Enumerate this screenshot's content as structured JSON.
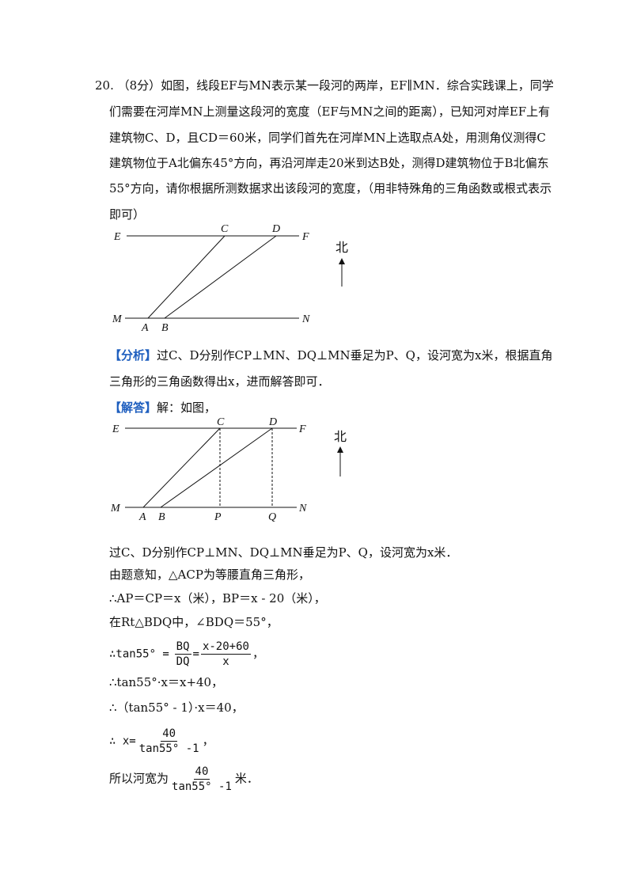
{
  "question": {
    "number": "20.",
    "lines": [
      "（8分）如图，线段EF与MN表示某一段河的两岸，EF∥MN．综合实践课上，同学",
      "们需要在河岸MN上测量这段河的宽度（EF与MN之间的距离），已知河对岸EF上有",
      "建筑物C、D，且CD＝60米，同学们首先在河岸MN上选取点A处，用测角仪测得C",
      "建筑物位于A北偏东45°方向，再沿河岸走20米到达B处，测得D建筑物位于B北偏东",
      "55°方向，请你根据所测数据求出该段河的宽度，（用非特殊角的三角函数或根式表示",
      "即可）"
    ]
  },
  "figure1": {
    "E": "E",
    "F": "F",
    "C": "C",
    "D": "D",
    "M": "M",
    "N": "N",
    "A": "A",
    "B": "B",
    "north": "北"
  },
  "analysis": {
    "tag": "【分析】",
    "text": "过C、D分别作CP⊥MN、DQ⊥MN垂足为P、Q，设河宽为x米，根据直角",
    "text2": "三角形的三角函数得出x，进而解答即可．"
  },
  "answer": {
    "tag": "【解答】",
    "text": "解：如图，"
  },
  "figure2": {
    "E": "E",
    "F": "F",
    "C": "C",
    "D": "D",
    "M": "M",
    "N": "N",
    "A": "A",
    "B": "B",
    "P": "P",
    "Q": "Q",
    "north": "北"
  },
  "solution": {
    "l1": "过C、D分别作CP⊥MN、DQ⊥MN垂足为P、Q，设河宽为x米．",
    "l2": "由题意知，△ACP为等腰直角三角形，",
    "l3": "∴AP＝CP＝x（米），BP＝x - 20（米），",
    "l4": "在Rt△BDQ中，∠BDQ＝55°，",
    "l5_pre": "∴tan55° =",
    "l5_f1_num": "BQ",
    "l5_f1_den": "DQ",
    "l5_eq": "=",
    "l5_f2_num": "x-20+60",
    "l5_f2_den": "x",
    "l5_post": "，",
    "l6": "∴tan55°·x＝x+40，",
    "l7": "∴（tan55° - 1）·x＝40，",
    "l8_pre": "∴ x=",
    "l8_num": "40",
    "l8_den": "tan55° -1",
    "l8_post": "，",
    "l9_pre": "所以河宽为",
    "l9_num": "40",
    "l9_den": "tan55° -1",
    "l9_post": "米．"
  }
}
